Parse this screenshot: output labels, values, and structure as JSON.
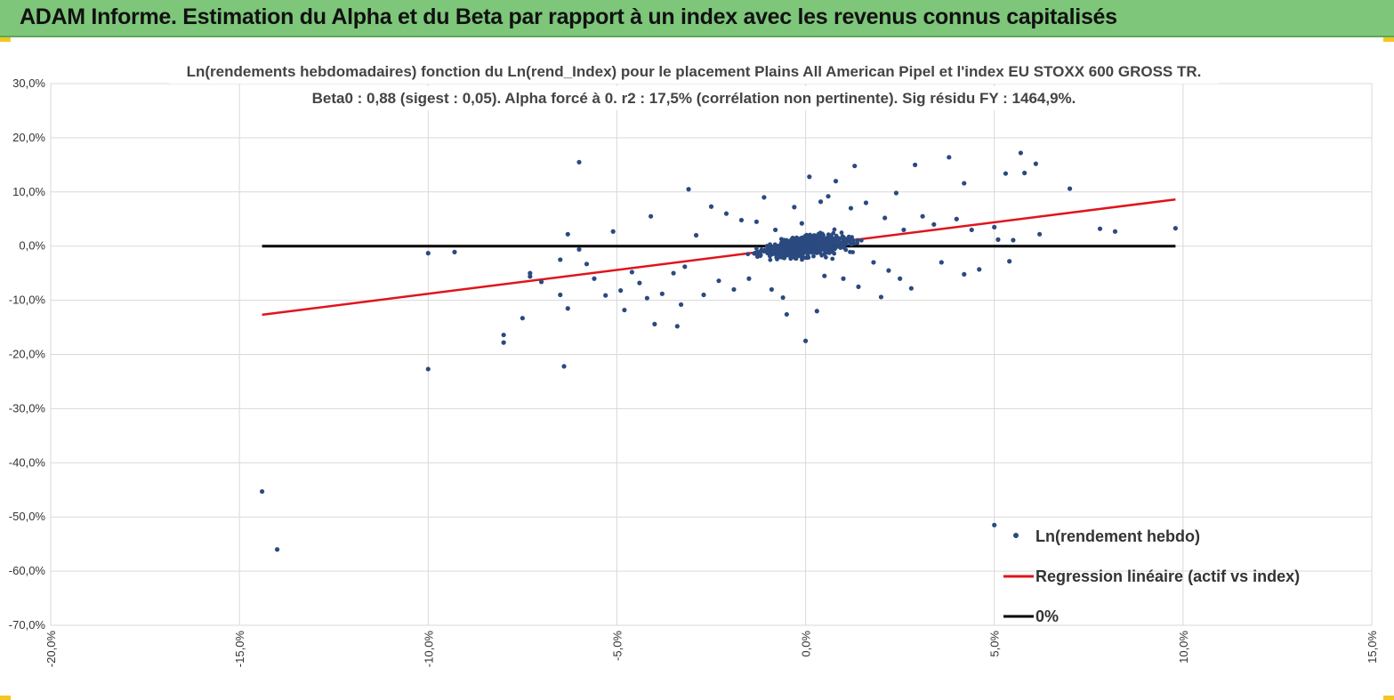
{
  "banner": {
    "title": "ADAM Informe. Estimation du Alpha et du Beta par rapport à un index avec les revenus connus capitalisés"
  },
  "colors": {
    "banner": "#7dc67a",
    "points": "#2a4a80",
    "regression": "#e0141b",
    "zero_line": "#000000",
    "grid": "#d9d9d9"
  },
  "chart_data": {
    "type": "scatter",
    "title_lines": [
      "Ln(rendements hebdomadaires) fonction du Ln(rend_Index) pour le placement Plains All American Pipel et l'index EU STOXX 600 GROSS TR.",
      "Beta0 : 0,88 (sigest : 0,05). Alpha forcé à 0. r2 : 17,5% (corrélation non pertinente). Sig résidu FY : 1464,9%."
    ],
    "xlim": [
      -0.2,
      0.15
    ],
    "ylim": [
      -0.7,
      0.3
    ],
    "x_ticks": [
      -0.2,
      -0.15,
      -0.1,
      -0.05,
      0.0,
      0.05,
      0.1,
      0.15
    ],
    "x_tick_labels": [
      "-20,0%",
      "-15,0%",
      "-10,0%",
      "-5,0%",
      "0,0%",
      "5,0%",
      "10,0%",
      "15,0%"
    ],
    "y_ticks": [
      0.3,
      0.2,
      0.1,
      0.0,
      -0.1,
      -0.2,
      -0.3,
      -0.4,
      -0.5,
      -0.6,
      -0.7
    ],
    "y_tick_labels": [
      "30,0%",
      "20,0%",
      "10,0%",
      "0,0%",
      "-10,0%",
      "-20,0%",
      "-30,0%",
      "-40,0%",
      "-50,0%",
      "-60,0%",
      "-70,0%"
    ],
    "grid": true,
    "legend_position": "bottom-right",
    "series": [
      {
        "name": "Ln(rendement hebdo)",
        "kind": "scatter",
        "color": "#2a4a80",
        "points": [
          [
            -0.144,
            -0.453
          ],
          [
            -0.14,
            -0.56
          ],
          [
            -0.1,
            -0.227
          ],
          [
            -0.1,
            -0.013
          ],
          [
            -0.093,
            -0.011
          ],
          [
            -0.08,
            -0.178
          ],
          [
            -0.08,
            -0.164
          ],
          [
            -0.075,
            -0.133
          ],
          [
            -0.073,
            -0.05
          ],
          [
            -0.073,
            -0.056
          ],
          [
            -0.07,
            -0.066
          ],
          [
            -0.065,
            -0.09
          ],
          [
            -0.065,
            -0.025
          ],
          [
            -0.064,
            -0.222
          ],
          [
            -0.063,
            0.022
          ],
          [
            -0.063,
            -0.115
          ],
          [
            -0.06,
            0.155
          ],
          [
            -0.06,
            -0.006
          ],
          [
            -0.058,
            -0.033
          ],
          [
            -0.056,
            -0.06
          ],
          [
            -0.053,
            -0.091
          ],
          [
            -0.051,
            0.027
          ],
          [
            -0.049,
            -0.082
          ],
          [
            -0.048,
            -0.118
          ],
          [
            -0.046,
            -0.048
          ],
          [
            -0.044,
            -0.068
          ],
          [
            -0.042,
            -0.096
          ],
          [
            -0.041,
            0.055
          ],
          [
            -0.04,
            -0.144
          ],
          [
            -0.038,
            -0.088
          ],
          [
            -0.035,
            -0.05
          ],
          [
            -0.034,
            -0.148
          ],
          [
            -0.033,
            -0.108
          ],
          [
            -0.032,
            -0.038
          ],
          [
            -0.031,
            0.105
          ],
          [
            -0.029,
            0.02
          ],
          [
            -0.027,
            -0.09
          ],
          [
            -0.025,
            0.073
          ],
          [
            -0.023,
            -0.064
          ],
          [
            -0.021,
            0.06
          ],
          [
            -0.019,
            -0.08
          ],
          [
            -0.017,
            0.048
          ],
          [
            -0.015,
            -0.06
          ],
          [
            -0.013,
            0.045
          ],
          [
            -0.011,
            0.09
          ],
          [
            -0.009,
            -0.08
          ],
          [
            -0.008,
            0.03
          ],
          [
            -0.006,
            -0.095
          ],
          [
            -0.005,
            -0.126
          ],
          [
            -0.003,
            0.072
          ],
          [
            -0.001,
            0.042
          ],
          [
            0.0,
            -0.175
          ],
          [
            0.001,
            0.128
          ],
          [
            0.003,
            -0.12
          ],
          [
            0.004,
            0.082
          ],
          [
            0.005,
            -0.055
          ],
          [
            0.006,
            0.092
          ],
          [
            0.008,
            0.12
          ],
          [
            0.01,
            -0.06
          ],
          [
            0.012,
            0.07
          ],
          [
            0.013,
            0.148
          ],
          [
            0.014,
            -0.075
          ],
          [
            0.016,
            0.08
          ],
          [
            0.018,
            -0.03
          ],
          [
            0.02,
            -0.094
          ],
          [
            0.021,
            0.052
          ],
          [
            0.022,
            -0.045
          ],
          [
            0.024,
            0.098
          ],
          [
            0.025,
            -0.06
          ],
          [
            0.026,
            0.03
          ],
          [
            0.028,
            -0.078
          ],
          [
            0.029,
            0.15
          ],
          [
            0.031,
            0.055
          ],
          [
            0.034,
            0.04
          ],
          [
            0.036,
            -0.03
          ],
          [
            0.038,
            0.164
          ],
          [
            0.04,
            0.05
          ],
          [
            0.042,
            0.116
          ],
          [
            0.042,
            -0.052
          ],
          [
            0.044,
            0.03
          ],
          [
            0.046,
            -0.043
          ],
          [
            0.05,
            0.035
          ],
          [
            0.05,
            -0.515
          ],
          [
            0.051,
            0.012
          ],
          [
            0.053,
            0.134
          ],
          [
            0.054,
            -0.028
          ],
          [
            0.055,
            0.011
          ],
          [
            0.057,
            0.172
          ],
          [
            0.058,
            0.135
          ],
          [
            0.061,
            0.152
          ],
          [
            0.062,
            0.022
          ],
          [
            0.07,
            0.106
          ],
          [
            0.078,
            0.032
          ],
          [
            0.082,
            0.027
          ],
          [
            0.098,
            0.033
          ]
        ]
      },
      {
        "name": "Regression linéaire (actif vs index)",
        "kind": "line",
        "color": "#e0141b",
        "x": [
          -0.144,
          0.098
        ],
        "y": [
          -0.1267,
          0.0862
        ]
      },
      {
        "name": "0%",
        "kind": "line",
        "color": "#000000",
        "x": [
          -0.144,
          0.098
        ],
        "y": [
          0.0,
          0.0
        ]
      }
    ]
  }
}
